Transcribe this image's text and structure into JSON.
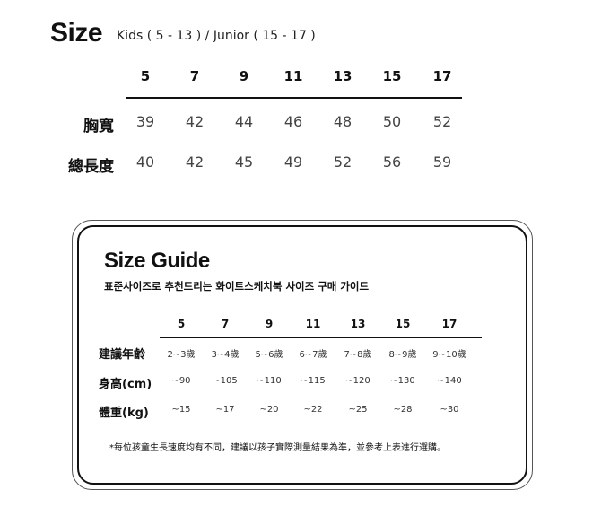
{
  "header": {
    "title": "Size",
    "subtitle": "Kids ( 5 - 13 ) / Junior ( 15 - 17 )"
  },
  "top_table": {
    "columns": [
      "5",
      "7",
      "9",
      "11",
      "13",
      "15",
      "17"
    ],
    "rows": [
      {
        "label": "胸寬",
        "values": [
          "39",
          "42",
          "44",
          "46",
          "48",
          "50",
          "52"
        ]
      },
      {
        "label": "總長度",
        "values": [
          "40",
          "42",
          "45",
          "49",
          "52",
          "56",
          "59"
        ]
      }
    ]
  },
  "guide": {
    "title": "Size Guide",
    "subtitle": "표준사이즈로 추천드리는 화이트스케치북 사이즈 구매 가이드",
    "columns": [
      "5",
      "7",
      "9",
      "11",
      "13",
      "15",
      "17"
    ],
    "rows": [
      {
        "label": "建議年齡",
        "values": [
          "2~3歲",
          "3~4歲",
          "5~6歲",
          "6~7歲",
          "7~8歲",
          "8~9歲",
          "9~10歲"
        ]
      },
      {
        "label": "身高(cm)",
        "values": [
          "~90",
          "~105",
          "~110",
          "~115",
          "~120",
          "~130",
          "~140"
        ]
      },
      {
        "label": "體重(kg)",
        "values": [
          "~15",
          "~17",
          "~20",
          "~22",
          "~25",
          "~28",
          "~30"
        ]
      }
    ],
    "note": "*每位孩童生長速度均有不同，建議以孩子實際測量結果為準，並參考上表進行選購。"
  }
}
